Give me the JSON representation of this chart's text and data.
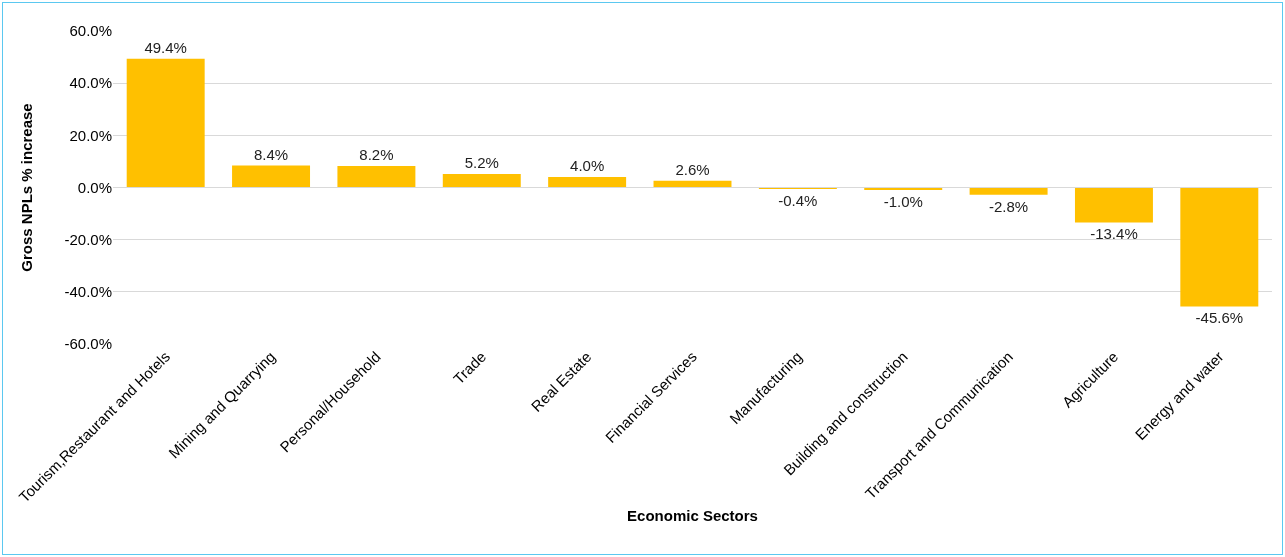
{
  "chart_data": {
    "type": "bar",
    "xlabel": "Economic Sectors",
    "ylabel": "Gross NPLs % increase",
    "categories": [
      "Tourism,Restaurant and Hotels",
      "Mining and Quarrying",
      "Personal/Household",
      "Trade",
      "Real Estate",
      "Financial Services",
      "Manufacturing",
      "Building and construction",
      "Transport and Communication",
      "Agriculture",
      "Energy and water"
    ],
    "values": [
      49.4,
      8.4,
      8.2,
      5.2,
      4.0,
      2.6,
      -0.4,
      -1.0,
      -2.8,
      -13.4,
      -45.6
    ],
    "value_labels": [
      "49.4%",
      "8.4%",
      "8.2%",
      "5.2%",
      "4.0%",
      "2.6%",
      "-0.4%",
      "-1.0%",
      "-2.8%",
      "-13.4%",
      "-45.6%"
    ],
    "color": "#ffc000",
    "ylim": [
      -60,
      60
    ],
    "yticks": [
      {
        "value": -60,
        "label": "-60.0%"
      },
      {
        "value": -40,
        "label": "-40.0%"
      },
      {
        "value": -20,
        "label": "-20.0%"
      },
      {
        "value": 0,
        "label": "0.0%"
      },
      {
        "value": 20,
        "label": "20.0%"
      },
      {
        "value": 40,
        "label": "40.0%"
      },
      {
        "value": 60,
        "label": "60.0%"
      }
    ],
    "grid": "y"
  }
}
